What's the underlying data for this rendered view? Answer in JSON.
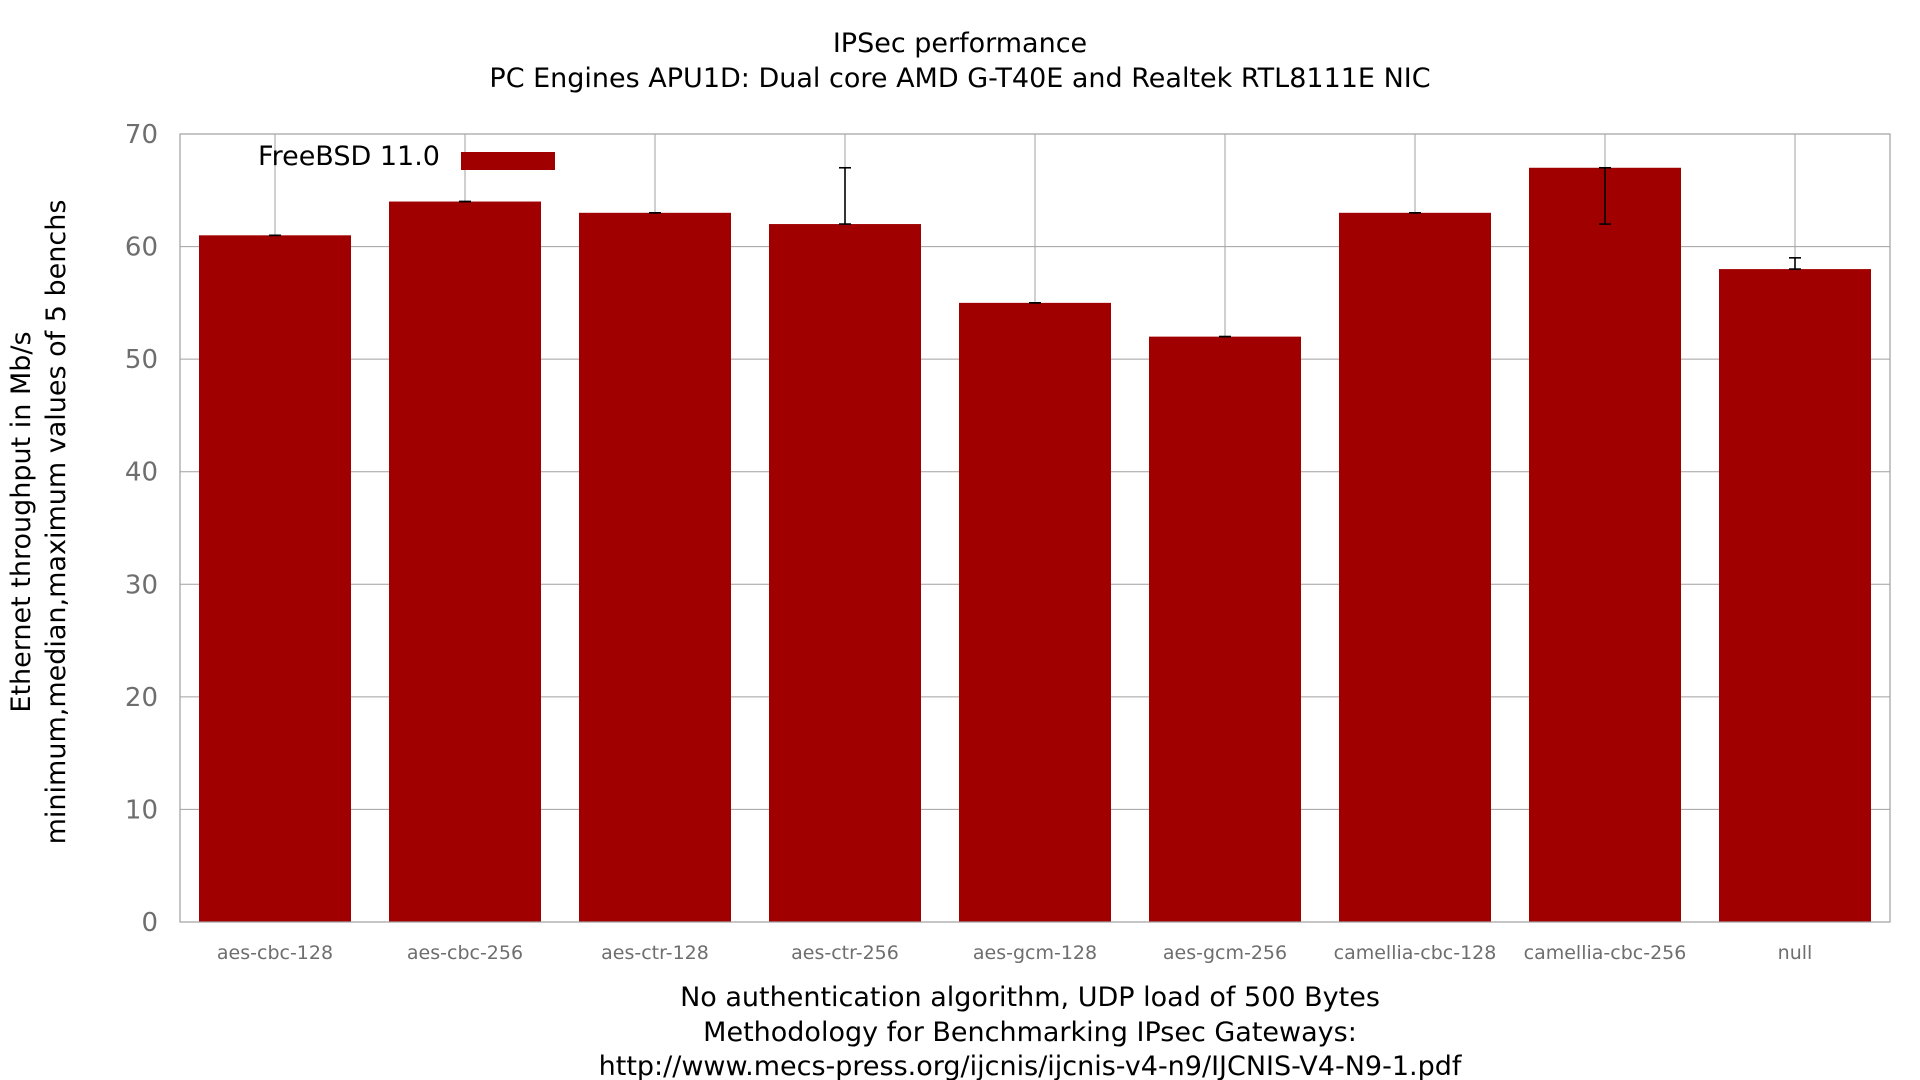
{
  "chart_data": {
    "type": "bar",
    "title": "IPSec performance",
    "subtitle": "PC Engines APU1D: Dual core AMD G-T40E and Realtek RTL8111E NIC",
    "ylabel": "Ethernet throughput in Mb/s",
    "ylabel2": "minimum,median,maximum values of 5 benchs",
    "xlabel_lines": [
      "No authentication algorithm, UDP load of 500 Bytes",
      "Methodology for Benchmarking IPsec Gateways:",
      "http://www.mecs-press.org/ijcnis/ijcnis-v4-n9/IJCNIS-V4-N9-1.pdf"
    ],
    "ylim": [
      0,
      70
    ],
    "yticks": [
      0,
      10,
      20,
      30,
      40,
      50,
      60,
      70
    ],
    "grid": true,
    "legend_placement": "top-left",
    "categories": [
      "aes-cbc-128",
      "aes-cbc-256",
      "aes-ctr-128",
      "aes-ctr-256",
      "aes-gcm-128",
      "aes-gcm-256",
      "camellia-cbc-128",
      "camellia-cbc-256",
      "null"
    ],
    "series": [
      {
        "name": "FreeBSD 11.0",
        "color": "#a00000",
        "values": [
          61,
          64,
          63,
          62,
          55,
          52,
          63,
          67,
          58
        ],
        "min": [
          61,
          64,
          63,
          62,
          55,
          52,
          63,
          62,
          58
        ],
        "max": [
          61,
          64,
          63,
          67,
          55,
          52,
          63,
          67,
          59
        ]
      }
    ]
  }
}
